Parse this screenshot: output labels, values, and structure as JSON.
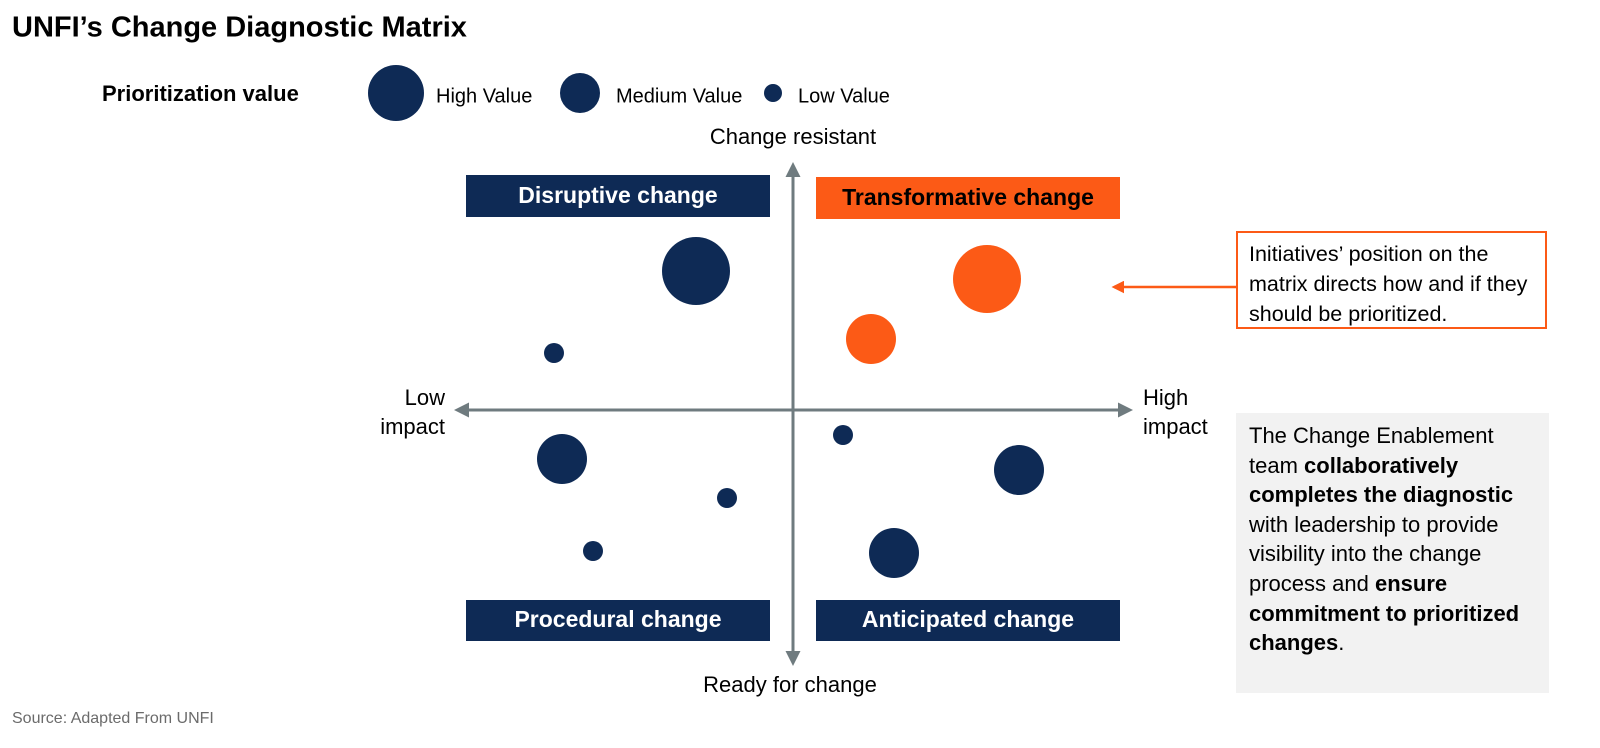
{
  "header": {
    "title": "UNFI’s Change Diagnostic Matrix"
  },
  "legend": {
    "title": "Prioritization value",
    "items": [
      "High Value",
      "Medium Value",
      "Low Value"
    ]
  },
  "axes": {
    "top": "Change resistant",
    "bottom": "Ready for change",
    "left": "Low impact",
    "right": "High impact"
  },
  "quadrants": {
    "top_left": "Disruptive change",
    "top_right": "Transformative change",
    "bottom_left": "Procedural change",
    "bottom_right": "Anticipated change"
  },
  "callout": "Initiatives’ position on the matrix directs how and if they should be prioritized.",
  "note": [
    {
      "text": "The Change Enablement team ",
      "bold": false
    },
    {
      "text": "collaboratively completes the diagnostic",
      "bold": true
    },
    {
      "text": " with leadership to provide visibility into the change process and ",
      "bold": false
    },
    {
      "text": "ensure commitment to prioritized changes",
      "bold": true
    },
    {
      "text": ".",
      "bold": false
    }
  ],
  "footer": {
    "source": "Source: Adapted From UNFI"
  }
}
